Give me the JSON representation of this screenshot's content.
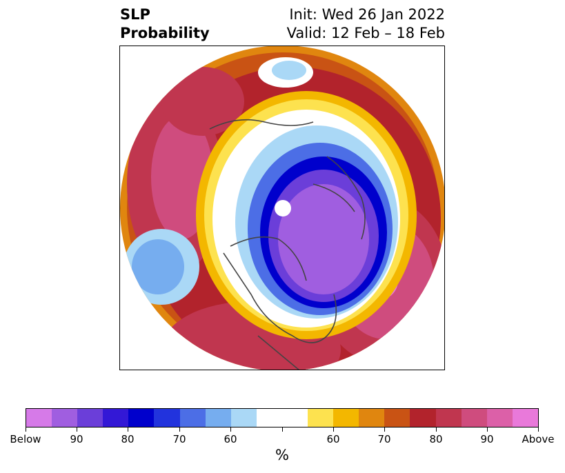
{
  "title": {
    "left_line1": "SLP",
    "left_line2": "Probability",
    "right_line1": "Init: Wed 26 Jan 2022",
    "right_line2": "Valid: 12 Feb – 18 Feb"
  },
  "map": {
    "projection": "north-polar-stereographic",
    "below_colors": [
      "#d67ae8",
      "#a05ee0",
      "#6b3ed9",
      "#3318d6",
      "#0000cc",
      "#2233dd",
      "#4c6ee6",
      "#76adef",
      "#aad8f6"
    ],
    "above_colors": [
      "#fde24f",
      "#f3b700",
      "#e0860f",
      "#c95314",
      "#b2232c",
      "#c0364f",
      "#cf4c7e",
      "#dc60a8",
      "#e979da"
    ],
    "neutral_color": "#ffffff",
    "land_outline_color": "#444444"
  },
  "colorbar": {
    "tick_labels": [
      "Below",
      "90",
      "80",
      "70",
      "60",
      "",
      "60",
      "70",
      "80",
      "90",
      "Above"
    ],
    "unit": "%"
  }
}
